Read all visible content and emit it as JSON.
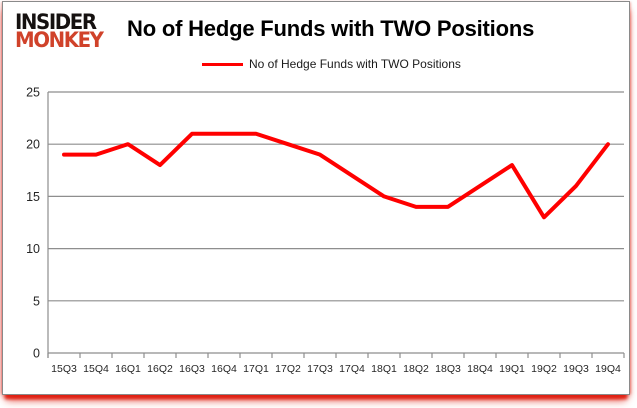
{
  "logo": {
    "line1": "INSIDER",
    "line2": "MONKEY"
  },
  "header": {
    "title": "No of Hedge Funds with TWO Positions"
  },
  "legend": {
    "label": "No of Hedge Funds with TWO Positions",
    "swatch_color": "#ff0000"
  },
  "chart_data": {
    "type": "line",
    "title": "No of Hedge Funds with TWO Positions",
    "categories": [
      "15Q3",
      "15Q4",
      "16Q1",
      "16Q2",
      "16Q3",
      "16Q4",
      "17Q1",
      "17Q2",
      "17Q3",
      "17Q4",
      "18Q1",
      "18Q2",
      "18Q3",
      "18Q4",
      "19Q1",
      "19Q2",
      "19Q3",
      "19Q4"
    ],
    "series": [
      {
        "name": "No of Hedge Funds with TWO Positions",
        "color": "#ff0000",
        "values": [
          19,
          19,
          20,
          18,
          21,
          21,
          21,
          20,
          19,
          17,
          15,
          14,
          14,
          16,
          18,
          13,
          16,
          20
        ]
      }
    ],
    "xlabel": "",
    "ylabel": "",
    "ylim": [
      0,
      25
    ],
    "yticks": [
      0,
      5,
      10,
      15,
      20,
      25
    ],
    "grid": "horizontal",
    "legend_position": "top-center"
  },
  "colors": {
    "line_red": "#ff0000",
    "logo_red": "#d0422a",
    "grid_gray": "#8e8e8e",
    "border_gray": "#8a8a8a",
    "shadow_red": "#df2012",
    "text": "#262626"
  }
}
